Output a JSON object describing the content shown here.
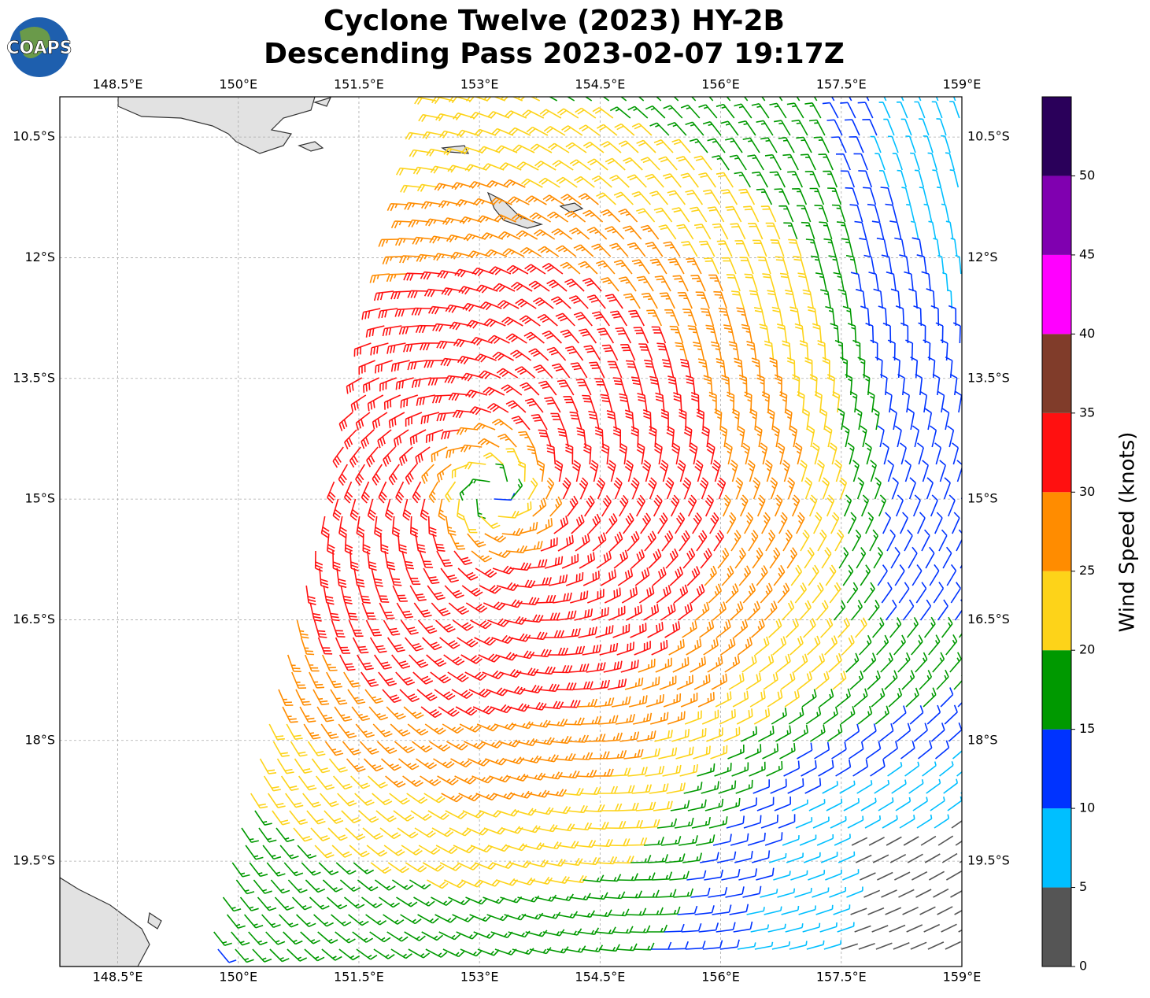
{
  "title": [
    "Cyclone Twelve (2023) HY-2B",
    "Descending Pass 2023-02-07 19:17Z"
  ],
  "logo_text": "COAPS",
  "map": {
    "xlim": [
      147.78,
      159
    ],
    "ylim": [
      -20.81,
      -10.0
    ],
    "grid": true,
    "lon_ticks": [
      {
        "value": 148.5,
        "label": "148.5°E"
      },
      {
        "value": 150,
        "label": "150°E"
      },
      {
        "value": 151.5,
        "label": "151.5°E"
      },
      {
        "value": 153,
        "label": "153°E"
      },
      {
        "value": 154.5,
        "label": "154.5°E"
      },
      {
        "value": 156,
        "label": "156°E"
      },
      {
        "value": 157.5,
        "label": "157.5°E"
      },
      {
        "value": 159,
        "label": "159°E"
      }
    ],
    "lat_ticks": [
      {
        "value": -10.5,
        "label": "10.5°S"
      },
      {
        "value": -12,
        "label": "12°S"
      },
      {
        "value": -13.5,
        "label": "13.5°S"
      },
      {
        "value": -15,
        "label": "15°S"
      },
      {
        "value": -16.5,
        "label": "16.5°S"
      },
      {
        "value": -18,
        "label": "18°S"
      },
      {
        "value": -19.5,
        "label": "19.5°S"
      }
    ]
  },
  "colorbar": {
    "label": "Wind Speed (knots)",
    "lim": [
      0,
      55
    ],
    "ticks": [
      0,
      5,
      10,
      15,
      20,
      25,
      30,
      35,
      40,
      45,
      50
    ],
    "colors": [
      "#555555",
      "#00bfff",
      "#0033ff",
      "#009900",
      "#fdd319",
      "#ff8c00",
      "#ff1010",
      "#803c2a",
      "#ff00ff",
      "#8000b0",
      "#2a005a"
    ]
  }
}
